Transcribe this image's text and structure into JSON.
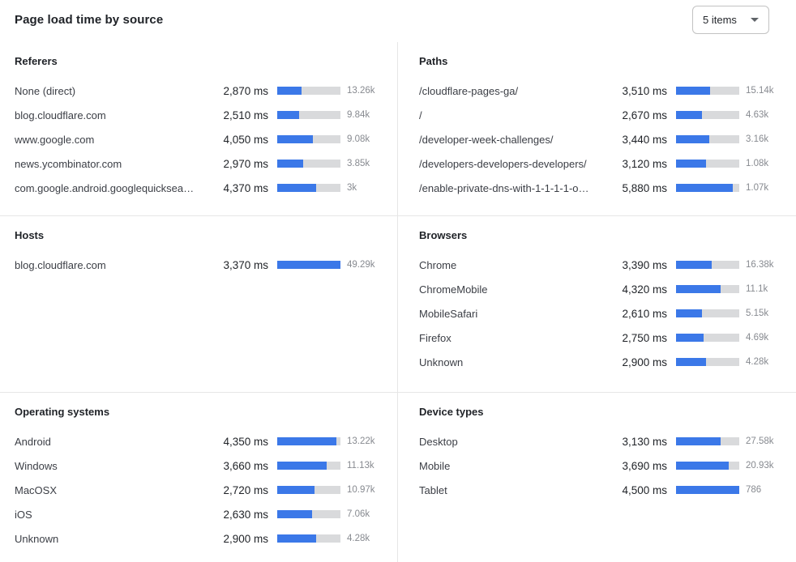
{
  "header": {
    "title": "Page load time by source",
    "items_selector": {
      "label": "5 items",
      "icon": "caret-down-icon"
    }
  },
  "colors": {
    "bar_fill": "#3b78e8",
    "bar_track": "#d9dadc",
    "divider": "#e6e6e6",
    "count_text": "#878a90"
  },
  "sections": [
    {
      "title": "Referers",
      "rows": [
        {
          "label": "None (direct)",
          "value": "2,870 ms",
          "count": "13.26k",
          "bar_pct": 39
        },
        {
          "label": "blog.cloudflare.com",
          "value": "2,510 ms",
          "count": "9.84k",
          "bar_pct": 34
        },
        {
          "label": "www.google.com",
          "value": "4,050 ms",
          "count": "9.08k",
          "bar_pct": 56
        },
        {
          "label": "news.ycombinator.com",
          "value": "2,970 ms",
          "count": "3.85k",
          "bar_pct": 41
        },
        {
          "label": "com.google.android.googlequicksearc…",
          "value": "4,370 ms",
          "count": "3k",
          "bar_pct": 62
        }
      ]
    },
    {
      "title": "Paths",
      "rows": [
        {
          "label": "/cloudflare-pages-ga/",
          "value": "3,510 ms",
          "count": "15.14k",
          "bar_pct": 54
        },
        {
          "label": "/",
          "value": "2,670 ms",
          "count": "4.63k",
          "bar_pct": 41
        },
        {
          "label": "/developer-week-challenges/",
          "value": "3,440 ms",
          "count": "3.16k",
          "bar_pct": 53
        },
        {
          "label": "/developers-developers-developers/",
          "value": "3,120 ms",
          "count": "1.08k",
          "bar_pct": 48
        },
        {
          "label": "/enable-private-dns-with-1-1-1-1-on-…",
          "value": "5,880 ms",
          "count": "1.07k",
          "bar_pct": 90
        }
      ]
    },
    {
      "title": "Hosts",
      "rows": [
        {
          "label": "blog.cloudflare.com",
          "value": "3,370 ms",
          "count": "49.29k",
          "bar_pct": 100
        }
      ]
    },
    {
      "title": "Browsers",
      "rows": [
        {
          "label": "Chrome",
          "value": "3,390 ms",
          "count": "16.38k",
          "bar_pct": 56
        },
        {
          "label": "ChromeMobile",
          "value": "4,320 ms",
          "count": "11.1k",
          "bar_pct": 71
        },
        {
          "label": "MobileSafari",
          "value": "2,610 ms",
          "count": "5.15k",
          "bar_pct": 41
        },
        {
          "label": "Firefox",
          "value": "2,750 ms",
          "count": "4.69k",
          "bar_pct": 44
        },
        {
          "label": "Unknown",
          "value": "2,900 ms",
          "count": "4.28k",
          "bar_pct": 48
        }
      ]
    },
    {
      "title": "Operating systems",
      "rows": [
        {
          "label": "Android",
          "value": "4,350 ms",
          "count": "13.22k",
          "bar_pct": 94
        },
        {
          "label": "Windows",
          "value": "3,660 ms",
          "count": "11.13k",
          "bar_pct": 78
        },
        {
          "label": "MacOSX",
          "value": "2,720 ms",
          "count": "10.97k",
          "bar_pct": 59
        },
        {
          "label": "iOS",
          "value": "2,630 ms",
          "count": "7.06k",
          "bar_pct": 55
        },
        {
          "label": "Unknown",
          "value": "2,900 ms",
          "count": "4.28k",
          "bar_pct": 62
        }
      ]
    },
    {
      "title": "Device types",
      "rows": [
        {
          "label": "Desktop",
          "value": "3,130 ms",
          "count": "27.58k",
          "bar_pct": 70
        },
        {
          "label": "Mobile",
          "value": "3,690 ms",
          "count": "20.93k",
          "bar_pct": 83
        },
        {
          "label": "Tablet",
          "value": "4,500 ms",
          "count": "786",
          "bar_pct": 100
        }
      ]
    }
  ],
  "chart_data": [
    {
      "type": "bar",
      "title": "Referers",
      "categories": [
        "None (direct)",
        "blog.cloudflare.com",
        "www.google.com",
        "news.ycombinator.com",
        "com.google.android.googlequicksearc…"
      ],
      "values_ms": [
        2870,
        2510,
        4050,
        2970,
        4370
      ],
      "counts": [
        "13.26k",
        "9.84k",
        "9.08k",
        "3.85k",
        "3k"
      ]
    },
    {
      "type": "bar",
      "title": "Paths",
      "categories": [
        "/cloudflare-pages-ga/",
        "/",
        "/developer-week-challenges/",
        "/developers-developers-developers/",
        "/enable-private-dns-with-1-1-1-1-on-…"
      ],
      "values_ms": [
        3510,
        2670,
        3440,
        3120,
        5880
      ],
      "counts": [
        "15.14k",
        "4.63k",
        "3.16k",
        "1.08k",
        "1.07k"
      ]
    },
    {
      "type": "bar",
      "title": "Hosts",
      "categories": [
        "blog.cloudflare.com"
      ],
      "values_ms": [
        3370
      ],
      "counts": [
        "49.29k"
      ]
    },
    {
      "type": "bar",
      "title": "Browsers",
      "categories": [
        "Chrome",
        "ChromeMobile",
        "MobileSafari",
        "Firefox",
        "Unknown"
      ],
      "values_ms": [
        3390,
        4320,
        2610,
        2750,
        2900
      ],
      "counts": [
        "16.38k",
        "11.1k",
        "5.15k",
        "4.69k",
        "4.28k"
      ]
    },
    {
      "type": "bar",
      "title": "Operating systems",
      "categories": [
        "Android",
        "Windows",
        "MacOSX",
        "iOS",
        "Unknown"
      ],
      "values_ms": [
        4350,
        3660,
        2720,
        2630,
        2900
      ],
      "counts": [
        "13.22k",
        "11.13k",
        "10.97k",
        "7.06k",
        "4.28k"
      ]
    },
    {
      "type": "bar",
      "title": "Device types",
      "categories": [
        "Desktop",
        "Mobile",
        "Tablet"
      ],
      "values_ms": [
        3130,
        3690,
        4500
      ],
      "counts": [
        "27.58k",
        "20.93k",
        "786"
      ]
    }
  ]
}
